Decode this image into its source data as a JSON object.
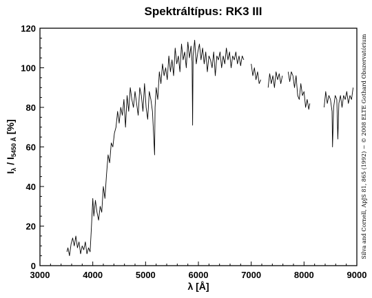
{
  "chart_data": {
    "type": "line",
    "title": "Spektráltípus: RK3 III",
    "xlabel": "λ [Å]",
    "ylabel": {
      "main": "I",
      "sub1": "λ",
      "sep": " / I",
      "sub2": "5450 Å",
      "unit": " [%]"
    },
    "credit": "Silva and Cornell, ApJS 81, 865 (1992) − © 2008 ELTE Gothard Obszervatórium",
    "xlim": [
      3000,
      9000
    ],
    "ylim": [
      0,
      120
    ],
    "x_ticks": [
      "3000",
      "4000",
      "5000",
      "6000",
      "7000",
      "8000",
      "9000"
    ],
    "y_ticks": [
      "0",
      "20",
      "40",
      "60",
      "80",
      "100",
      "120"
    ],
    "grid": false,
    "segments": [
      {
        "x": [
          3510,
          3530,
          3560,
          3590,
          3620,
          3650,
          3680,
          3710,
          3740,
          3770,
          3800,
          3830,
          3860,
          3890,
          3920,
          3950,
          3975,
          4000,
          4020,
          4050,
          4080,
          4110,
          4140,
          4170,
          4200,
          4230,
          4260,
          4290,
          4320,
          4350,
          4380,
          4410,
          4440,
          4470,
          4500,
          4530,
          4560,
          4590,
          4620,
          4650,
          4680,
          4710,
          4740,
          4770,
          4800,
          4830,
          4860,
          4890,
          4920,
          4950,
          4980,
          5010,
          5040,
          5070,
          5100,
          5130,
          5160,
          5170,
          5180,
          5200,
          5230,
          5260,
          5290,
          5320,
          5350,
          5380,
          5410,
          5440,
          5470,
          5500,
          5530,
          5560,
          5590,
          5620,
          5650,
          5680,
          5710,
          5740,
          5770,
          5800,
          5830,
          5860,
          5880,
          5890,
          5900,
          5930,
          5960,
          5990,
          6020,
          6050,
          6080,
          6110,
          6140,
          6170,
          6200,
          6230,
          6260,
          6290,
          6320,
          6350,
          6380,
          6410,
          6440,
          6470,
          6500,
          6530,
          6560,
          6590,
          6620,
          6650,
          6680,
          6710,
          6740,
          6770,
          6800,
          6830,
          6860
        ],
        "y": [
          7,
          9,
          5,
          11,
          14,
          10,
          15,
          9,
          12,
          6,
          10,
          8,
          12,
          6,
          9,
          7,
          20,
          34,
          25,
          33,
          27,
          23,
          30,
          27,
          40,
          34,
          46,
          56,
          52,
          62,
          60,
          67,
          70,
          78,
          72,
          80,
          76,
          84,
          70,
          86,
          78,
          90,
          84,
          80,
          88,
          82,
          76,
          90,
          86,
          78,
          92,
          80,
          74,
          88,
          84,
          78,
          62,
          56,
          80,
          90,
          84,
          98,
          92,
          102,
          96,
          100,
          94,
          106,
          98,
          104,
          96,
          110,
          102,
          106,
          98,
          112,
          104,
          108,
          100,
          113,
          105,
          111,
          103,
          71,
          106,
          114,
          102,
          108,
          112,
          104,
          110,
          102,
          108,
          98,
          106,
          104,
          100,
          108,
          96,
          106,
          104,
          108,
          100,
          106,
          102,
          110,
          104,
          108,
          100,
          106,
          104,
          108,
          102,
          106,
          101,
          106,
          104
        ]
      },
      {
        "x": [
          7000,
          7030,
          7060,
          7090,
          7120,
          7150,
          7180
        ],
        "y": [
          102,
          96,
          100,
          94,
          98,
          92,
          94
        ]
      },
      {
        "x": [
          7320,
          7350,
          7380,
          7410,
          7440,
          7470,
          7500,
          7530,
          7560,
          7590
        ],
        "y": [
          90,
          97,
          92,
          96,
          90,
          98,
          94,
          97,
          92,
          96
        ]
      },
      {
        "x": [
          7700,
          7730,
          7760,
          7790,
          7820,
          7850,
          7880,
          7910,
          7940,
          7970,
          8000,
          8030,
          8060,
          8090,
          8110
        ],
        "y": [
          98,
          93,
          98,
          96,
          90,
          96,
          86,
          84,
          92,
          86,
          88,
          80,
          84,
          79,
          82
        ]
      },
      {
        "x": [
          8380,
          8410,
          8440,
          8470,
          8500,
          8530,
          8540,
          8560,
          8590,
          8620,
          8640,
          8660,
          8690,
          8720,
          8750,
          8780,
          8810,
          8840,
          8870,
          8900,
          8930
        ],
        "y": [
          80,
          88,
          82,
          86,
          84,
          78,
          60,
          80,
          86,
          84,
          64,
          82,
          86,
          80,
          86,
          84,
          88,
          82,
          86,
          84,
          90
        ]
      }
    ]
  }
}
